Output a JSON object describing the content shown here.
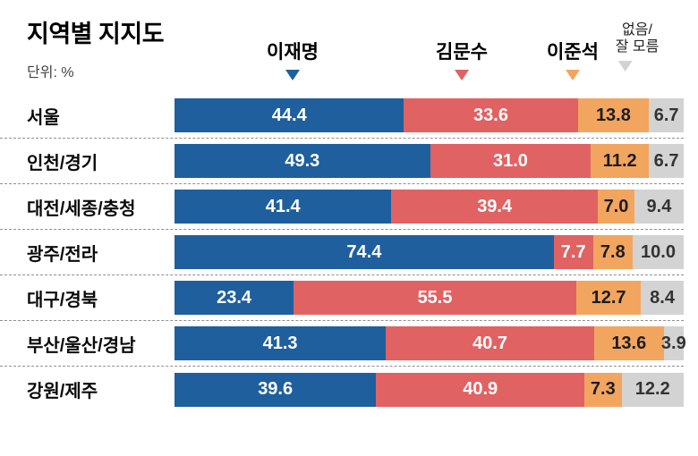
{
  "header": {
    "title": "지역별 지지도",
    "unit": "단위: %"
  },
  "legend": {
    "items": [
      {
        "key": "lee-jae-myung",
        "label_lines": [
          "이재명"
        ],
        "color": "#1f5f9e",
        "text_color": "#ffffff",
        "small": false
      },
      {
        "key": "kim-moon-soo",
        "label_lines": [
          "김문수"
        ],
        "color": "#e06263",
        "text_color": "#ffffff",
        "small": false
      },
      {
        "key": "lee-jun-seok",
        "label_lines": [
          "이준석"
        ],
        "color": "#f2a55f",
        "text_color": "#1c1c1c",
        "small": false
      },
      {
        "key": "none-dont-know",
        "label_lines": [
          "없음/",
          "잘 모름"
        ],
        "color": "#d3d3d3",
        "text_color": "#333333",
        "small": true
      }
    ]
  },
  "chart_data": {
    "type": "bar",
    "orientation": "horizontal",
    "stacked": true,
    "normalized_to_100": true,
    "title": "지역별 지지도",
    "unit": "%",
    "series_names": [
      "이재명",
      "김문수",
      "이준석",
      "없음/잘 모름"
    ],
    "series_colors": [
      "#1f5f9e",
      "#e06263",
      "#f2a55f",
      "#d3d3d3"
    ],
    "categories": [
      "서울",
      "인천/경기",
      "대전/세종/충청",
      "광주/전라",
      "대구/경북",
      "부산/울산/경남",
      "강원/제주"
    ],
    "rows": [
      {
        "label": "서울",
        "values": [
          44.4,
          33.6,
          13.8,
          6.7
        ],
        "value_labels": [
          "44.4",
          "33.6",
          "13.8",
          "6.7"
        ]
      },
      {
        "label": "인천/경기",
        "values": [
          49.3,
          31.0,
          11.2,
          6.7
        ],
        "value_labels": [
          "49.3",
          "31.0",
          "11.2",
          "6.7"
        ]
      },
      {
        "label": "대전/세종/충청",
        "values": [
          41.4,
          39.4,
          7.0,
          9.4
        ],
        "value_labels": [
          "41.4",
          "39.4",
          "7.0",
          "9.4"
        ]
      },
      {
        "label": "광주/전라",
        "values": [
          74.4,
          7.7,
          7.8,
          10.0
        ],
        "value_labels": [
          "74.4",
          "7.7",
          "7.8",
          "10.0"
        ]
      },
      {
        "label": "대구/경북",
        "values": [
          23.4,
          55.5,
          12.7,
          8.4
        ],
        "value_labels": [
          "23.4",
          "55.5",
          "12.7",
          "8.4"
        ]
      },
      {
        "label": "부산/울산/경남",
        "values": [
          41.3,
          40.7,
          13.6,
          3.9
        ],
        "value_labels": [
          "41.3",
          "40.7",
          "13.6",
          "3.9"
        ]
      },
      {
        "label": "강원/제주",
        "values": [
          39.6,
          40.9,
          7.3,
          12.2
        ],
        "value_labels": [
          "39.6",
          "40.9",
          "7.3",
          "12.2"
        ]
      }
    ]
  }
}
